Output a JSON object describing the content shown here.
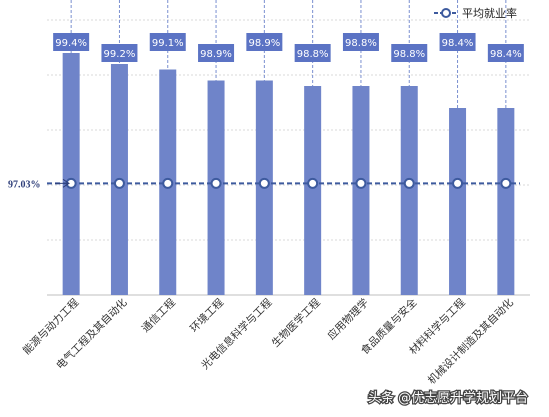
{
  "chart_data": {
    "type": "bar",
    "categories": [
      "能源与动力工程",
      "电气工程及其自动化",
      "通信工程",
      "环境工程",
      "光电信息科学与工程",
      "生物医学工程",
      "应用物理学",
      "食品质量与安全",
      "材料科学与工程",
      "机械设计制造及其自动化"
    ],
    "values": [
      99.4,
      99.2,
      99.1,
      98.9,
      98.9,
      98.8,
      98.8,
      98.8,
      98.4,
      98.4
    ],
    "value_labels": [
      "99.4%",
      "99.2%",
      "99.1%",
      "98.9%",
      "98.9%",
      "98.8%",
      "98.8%",
      "98.8%",
      "98.4%",
      "98.4%"
    ],
    "ylim": [
      95.0,
      100.0
    ],
    "reference_line": {
      "name": "平均就业率",
      "value": 97.03,
      "label": "97.03%"
    },
    "legend": {
      "position": "top-right",
      "entries": [
        "平均就业率"
      ]
    },
    "grid": true,
    "colors": {
      "bar": "#6f84c9",
      "label_box": "#5b73c4",
      "line": "#3d5a9e",
      "grid": "#d9d9d9"
    }
  },
  "watermark": "头条 @优志愿升学规划平台"
}
